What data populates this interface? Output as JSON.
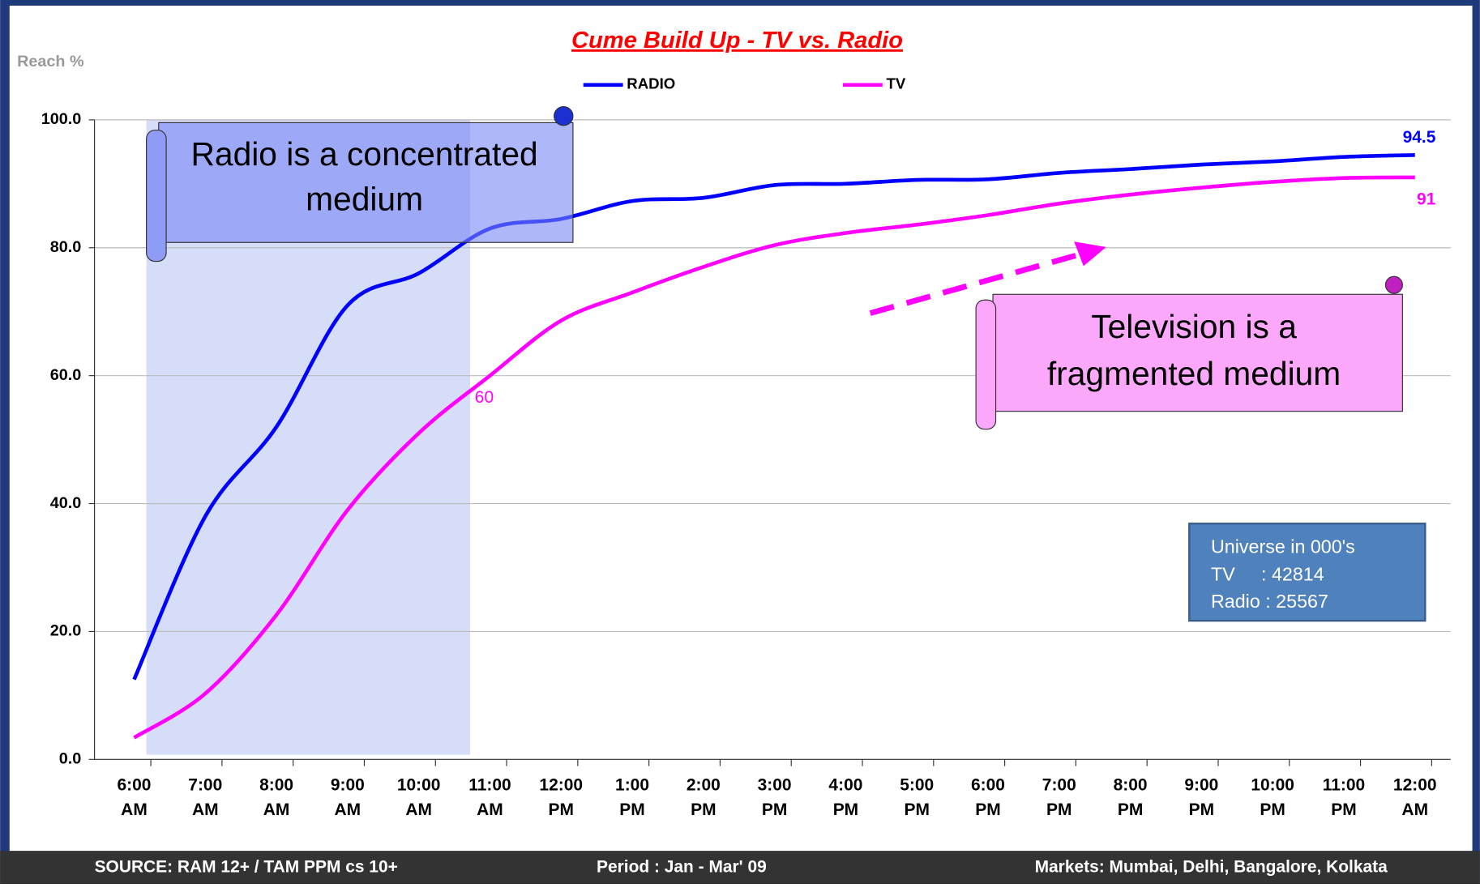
{
  "chart_data": {
    "type": "line",
    "title": "Cume Build Up - TV vs. Radio",
    "y_label": "Reach %",
    "categories": [
      "6:00 AM",
      "7:00 AM",
      "8:00 AM",
      "9:00 AM",
      "10:00 AM",
      "11:00 AM",
      "12:00 PM",
      "1:00 PM",
      "2:00 PM",
      "3:00 PM",
      "4:00 PM",
      "5:00 PM",
      "6:00 PM",
      "7:00 PM",
      "8:00 PM",
      "9:00 PM",
      "10:00 PM",
      "11:00 PM",
      "12:00 AM"
    ],
    "series": [
      {
        "name": "RADIO",
        "color": "#0000ff",
        "values": [
          12.5,
          38,
          52,
          71,
          76,
          83,
          84.5,
          87.3,
          87.8,
          89.8,
          90,
          90.6,
          90.7,
          91.7,
          92.3,
          93,
          93.5,
          94.2,
          94.5
        ],
        "value_labels": [
          null,
          null,
          null,
          null,
          null,
          null,
          null,
          null,
          null,
          null,
          null,
          null,
          null,
          null,
          null,
          null,
          null,
          null,
          "94.5"
        ]
      },
      {
        "name": "TV",
        "color": "#ff00ff",
        "values": [
          3.4,
          10.3,
          22.6,
          39,
          51,
          60,
          68.6,
          73,
          77,
          80.4,
          82.3,
          83.6,
          85.1,
          86.9,
          88.3,
          89.4,
          90.3,
          90.9,
          91
        ],
        "value_labels": [
          null,
          null,
          null,
          null,
          null,
          "60",
          null,
          null,
          null,
          null,
          null,
          null,
          null,
          null,
          null,
          null,
          null,
          null,
          "91"
        ]
      }
    ],
    "ylim": [
      0,
      100
    ],
    "yticks": [
      {
        "value": 0,
        "label": "0.0"
      },
      {
        "value": 20,
        "label": "20.0"
      },
      {
        "value": 40,
        "label": "40.0"
      },
      {
        "value": 60,
        "label": "60.0"
      },
      {
        "value": 80,
        "label": "80.0"
      },
      {
        "value": 100,
        "label": "100.0"
      }
    ],
    "grid": true,
    "annotations": [
      "Radio is a concentrated medium",
      "Television is a fragmented medium"
    ],
    "info_box": [
      "Universe in 000's",
      "TV     : 42814",
      "Radio : 25567"
    ],
    "footer": [
      "SOURCE: RAM 12+ / TAM PPM cs 10+",
      "Period : Jan - Mar' 09",
      "Markets: Mumbai, Delhi, Bangalore, Kolkata"
    ]
  }
}
